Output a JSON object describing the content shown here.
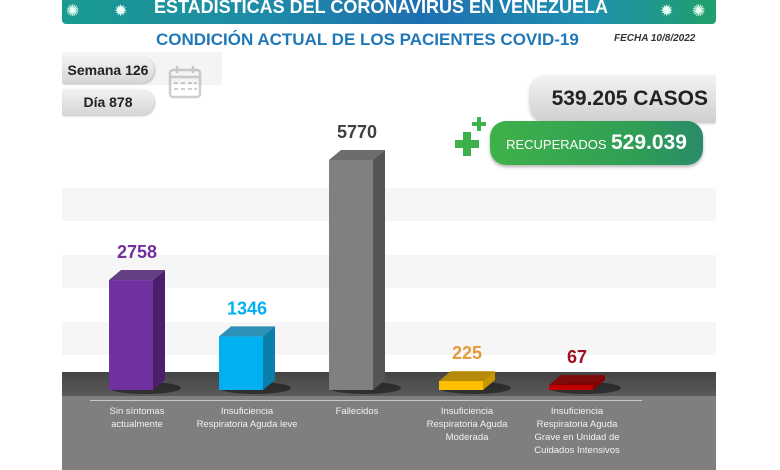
{
  "header": {
    "banner_title": "ESTADÍSTICAS DEL CORONAVIRUS EN VENEZUELA",
    "subtitle": "CONDICIÓN ACTUAL DE LOS PACIENTES COVID-19",
    "fecha": "FECHA 10/8/2022"
  },
  "info": {
    "semana": "Semana 126",
    "dia": "Día 878",
    "calendar_icon": "calendar-icon"
  },
  "totals": {
    "casos": "539.205 CASOS",
    "recuperados_label": "RECUPERADOS",
    "recuperados_value": "529.039",
    "plus_icon": "medical-cross-icon"
  },
  "colors": {
    "banner": "#1f78b8",
    "subtitle": "#1f78b8",
    "recuperados": "#3fb14a"
  },
  "chart_data": {
    "type": "bar",
    "title": "CONDICIÓN ACTUAL DE LOS PACIENTES COVID-19",
    "categories": [
      "Sin síntomas actualmente",
      "Insuficiencia Respiratoria Aguda leve",
      "Fallecidos",
      "Insuficiencia Respiratoria Aguda Moderada",
      "Insuficiencia Respiratoria Aguda Grave en Unidad de Cuidados Intensivos"
    ],
    "values": [
      2758,
      1346,
      5770,
      225,
      67
    ],
    "value_labels": [
      "2758",
      "1346",
      "5770",
      "225",
      "67"
    ],
    "colors": [
      "#7030a0",
      "#00b0f0",
      "#808080",
      "#ffc000",
      "#c00000"
    ],
    "side_colors": [
      "#4b1f6e",
      "#0a7fab",
      "#545454",
      "#c99700",
      "#8a0000"
    ],
    "label_colors": [
      "#7030a0",
      "#00b0f0",
      "#404040",
      "#e69b3a",
      "#a01020"
    ],
    "xlabel": "",
    "ylabel": "",
    "ylim": [
      0,
      5770
    ],
    "grid": false,
    "style": "3d-columns"
  }
}
